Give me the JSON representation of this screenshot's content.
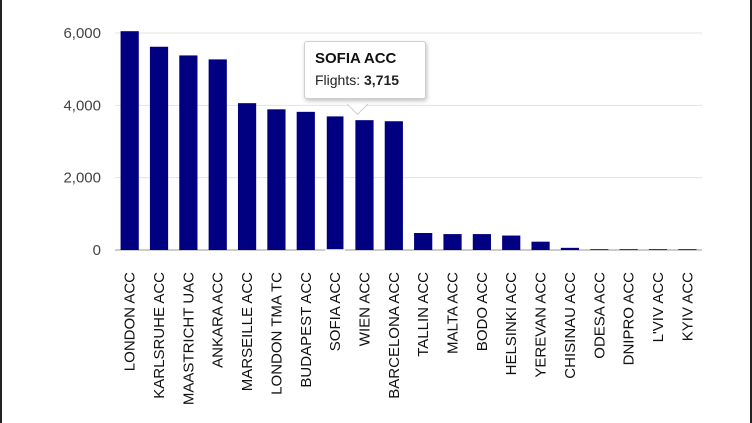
{
  "chart_data": {
    "type": "bar",
    "title": "",
    "xlabel": "",
    "ylabel": "",
    "ylim": [
      0,
      6000
    ],
    "yticks": [
      0,
      2000,
      4000,
      6000
    ],
    "ytick_labels": [
      "0",
      "2,000",
      "4,000",
      "6,000"
    ],
    "categories": [
      "LONDON ACC",
      "KARLSRUHE ACC",
      "MAASTRICHT UAC",
      "ANKARA ACC",
      "MARSEILLE ACC",
      "LONDON TMA TC",
      "BUDAPEST ACC",
      "SOFIA ACC",
      "WIEN ACC",
      "BARCELONA ACC",
      "TALLIN ACC",
      "MALTA ACC",
      "BODO ACC",
      "HELSINKI ACC",
      "YEREVAN ACC",
      "CHISINAU ACC",
      "ODESA ACC",
      "DNIPRO ACC",
      "L'VIV ACC",
      "KYIV ACC"
    ],
    "values": [
      6050,
      5620,
      5380,
      5270,
      4060,
      3890,
      3820,
      3715,
      3590,
      3560,
      470,
      440,
      440,
      400,
      230,
      60,
      5,
      5,
      5,
      5
    ],
    "bar_color": "#000080",
    "highlight_index": 7,
    "grid": true
  },
  "tooltip": {
    "title": "SOFIA ACC",
    "label": "Flights: ",
    "value": "3,715"
  }
}
